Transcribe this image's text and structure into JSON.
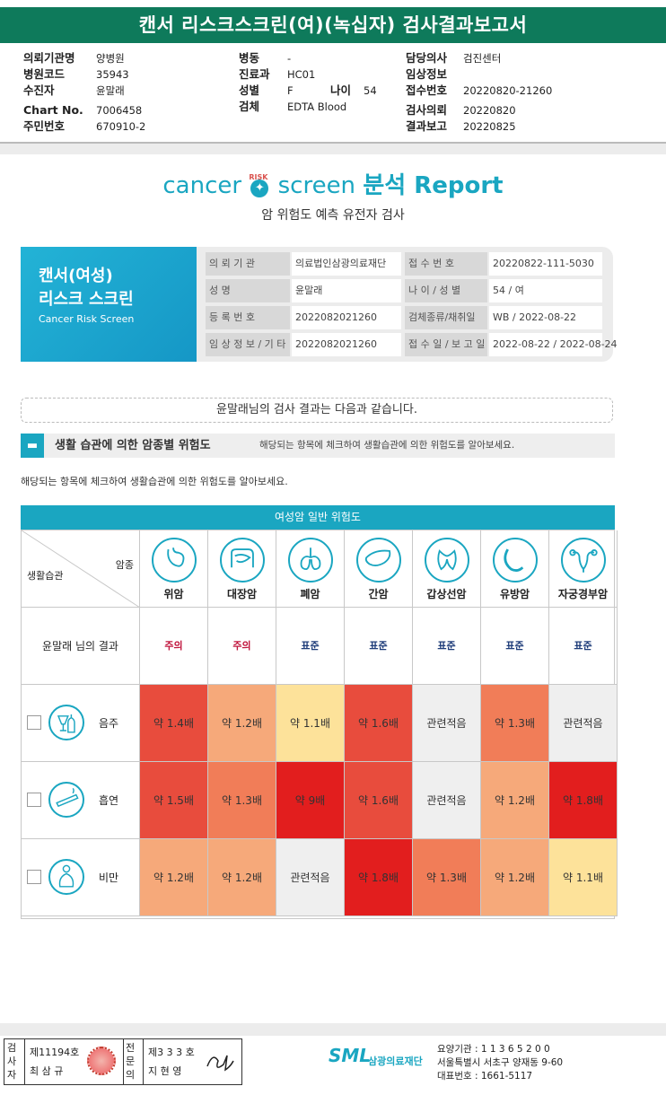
{
  "report_title": "캔서 리스크스크린(여)(녹십자) 검사결과보고서",
  "header_info": {
    "col1": [
      {
        "label": "의뢰기관명",
        "value": "양병원"
      },
      {
        "label": "병원코드",
        "value": "35943"
      },
      {
        "label": "수진자",
        "value": "윤말래"
      },
      {
        "label": "Chart No.",
        "value": "7006458"
      },
      {
        "label": "주민번호",
        "value": "670910-2"
      }
    ],
    "col2": [
      {
        "label": "병동",
        "value": "-"
      },
      {
        "label": "진료과",
        "value": "HC01"
      },
      {
        "label": "성별",
        "value": "F"
      },
      {
        "label": "검체",
        "value": "EDTA Blood"
      }
    ],
    "age_label": "나이",
    "age_value": "54",
    "col3": [
      {
        "label": "담당의사",
        "value": "검진센터"
      },
      {
        "label": "임상정보",
        "value": ""
      },
      {
        "label": "접수번호",
        "value": "20220820-21260"
      },
      {
        "label": "검사의뢰",
        "value": "20220820"
      },
      {
        "label": "결과보고",
        "value": "20220825"
      }
    ]
  },
  "brand": {
    "left": "cancer",
    "risk": "RISK",
    "right": "screen",
    "report": "분석 Report",
    "subtitle": "암 위험도 예측 유전자 검사"
  },
  "card": {
    "title1": "캔서(여성)",
    "title2": "리스크 스크린",
    "title3": "Cancer Risk Screen",
    "rows": [
      {
        "k1": "의 뢰 기 관",
        "v1": "의료법인삼광의료재단",
        "k2": "접 수 번 호",
        "v2": "20220822-111-5030"
      },
      {
        "k1": "성 명",
        "v1": "윤말래",
        "k2": "나 이 / 성 별",
        "v2": "54 / 여"
      },
      {
        "k1": "등 록 번 호",
        "v1": "2022082021260",
        "k2": "검체종류/채취일",
        "v2": "WB / 2022-08-22"
      },
      {
        "k1": "임 상 정 보 / 기 타",
        "v1": "2022082021260",
        "k2": "접 수 일 / 보 고 일",
        "v2": "2022-08-22 / 2022-08-24"
      }
    ]
  },
  "result_intro": "윤말래님의 검사 결과는 다음과 같습니다.",
  "section": {
    "heading": "생활 습관에 의한 암종별 위험도",
    "desc": "해당되는 항목에 체크하여 생활습관에 의한 위험도를 알아보세요."
  },
  "desc2": "해당되는 항목에 체크하여 생활습관에 의한 위험도를 알아보세요.",
  "grid": {
    "header": "여성암 일반 위험도",
    "corner_top": "암종",
    "corner_bottom": "생활습관",
    "result_label": "윤말래 님의 결과",
    "cancers": [
      {
        "name": "위암",
        "icon": "stomach-icon",
        "result": "주의",
        "result_color": "#c0143c"
      },
      {
        "name": "대장암",
        "icon": "colon-icon",
        "result": "주의",
        "result_color": "#c0143c"
      },
      {
        "name": "폐암",
        "icon": "lungs-icon",
        "result": "표준",
        "result_color": "#1f3d7a"
      },
      {
        "name": "간암",
        "icon": "liver-icon",
        "result": "표준",
        "result_color": "#1f3d7a"
      },
      {
        "name": "갑상선암",
        "icon": "thyroid-icon",
        "result": "표준",
        "result_color": "#1f3d7a"
      },
      {
        "name": "유방암",
        "icon": "breast-icon",
        "result": "표준",
        "result_color": "#1f3d7a"
      },
      {
        "name": "자궁경부암",
        "icon": "uterus-icon",
        "result": "표준",
        "result_color": "#1f3d7a"
      }
    ],
    "habits": [
      {
        "name": "음주",
        "icon": "alcohol-icon",
        "cells": [
          {
            "t": "약 1.4배",
            "c": "#e84c3d"
          },
          {
            "t": "약 1.2배",
            "c": "#f6a97a"
          },
          {
            "t": "약 1.1배",
            "c": "#fde29a"
          },
          {
            "t": "약 1.6배",
            "c": "#e84c3d"
          },
          {
            "t": "관련적음",
            "c": "#efefef"
          },
          {
            "t": "약 1.3배",
            "c": "#f17d58"
          },
          {
            "t": "관련적음",
            "c": "#efefef"
          }
        ]
      },
      {
        "name": "흡연",
        "icon": "smoking-icon",
        "cells": [
          {
            "t": "약 1.5배",
            "c": "#e84c3d"
          },
          {
            "t": "약 1.3배",
            "c": "#f17d58"
          },
          {
            "t": "약 9배",
            "c": "#e21e1e"
          },
          {
            "t": "약 1.6배",
            "c": "#e84c3d"
          },
          {
            "t": "관련적음",
            "c": "#efefef"
          },
          {
            "t": "약 1.2배",
            "c": "#f6a97a"
          },
          {
            "t": "약 1.8배",
            "c": "#e21e1e"
          }
        ]
      },
      {
        "name": "비만",
        "icon": "obesity-icon",
        "cells": [
          {
            "t": "약 1.2배",
            "c": "#f6a97a"
          },
          {
            "t": "약 1.2배",
            "c": "#f6a97a"
          },
          {
            "t": "관련적음",
            "c": "#efefef"
          },
          {
            "t": "약 1.8배",
            "c": "#e21e1e"
          },
          {
            "t": "약 1.3배",
            "c": "#f17d58"
          },
          {
            "t": "약 1.2배",
            "c": "#f6a97a"
          },
          {
            "t": "약 1.1배",
            "c": "#fde29a"
          }
        ]
      }
    ]
  },
  "footer": {
    "label1": "검사자",
    "license1": "제11194호",
    "name1": "최 삼 규",
    "label2": "전문의",
    "license2": "제3 3 3 호",
    "name2": "지 현 영",
    "org_logo": "SML",
    "org_name": "삼광의료재단",
    "addr1": "요양기관 : 1 1 3 6 5 2 0 0",
    "addr2": "서울특별시 서초구 양재동 9-60",
    "addr3": "대표번호 : 1661-5117"
  }
}
